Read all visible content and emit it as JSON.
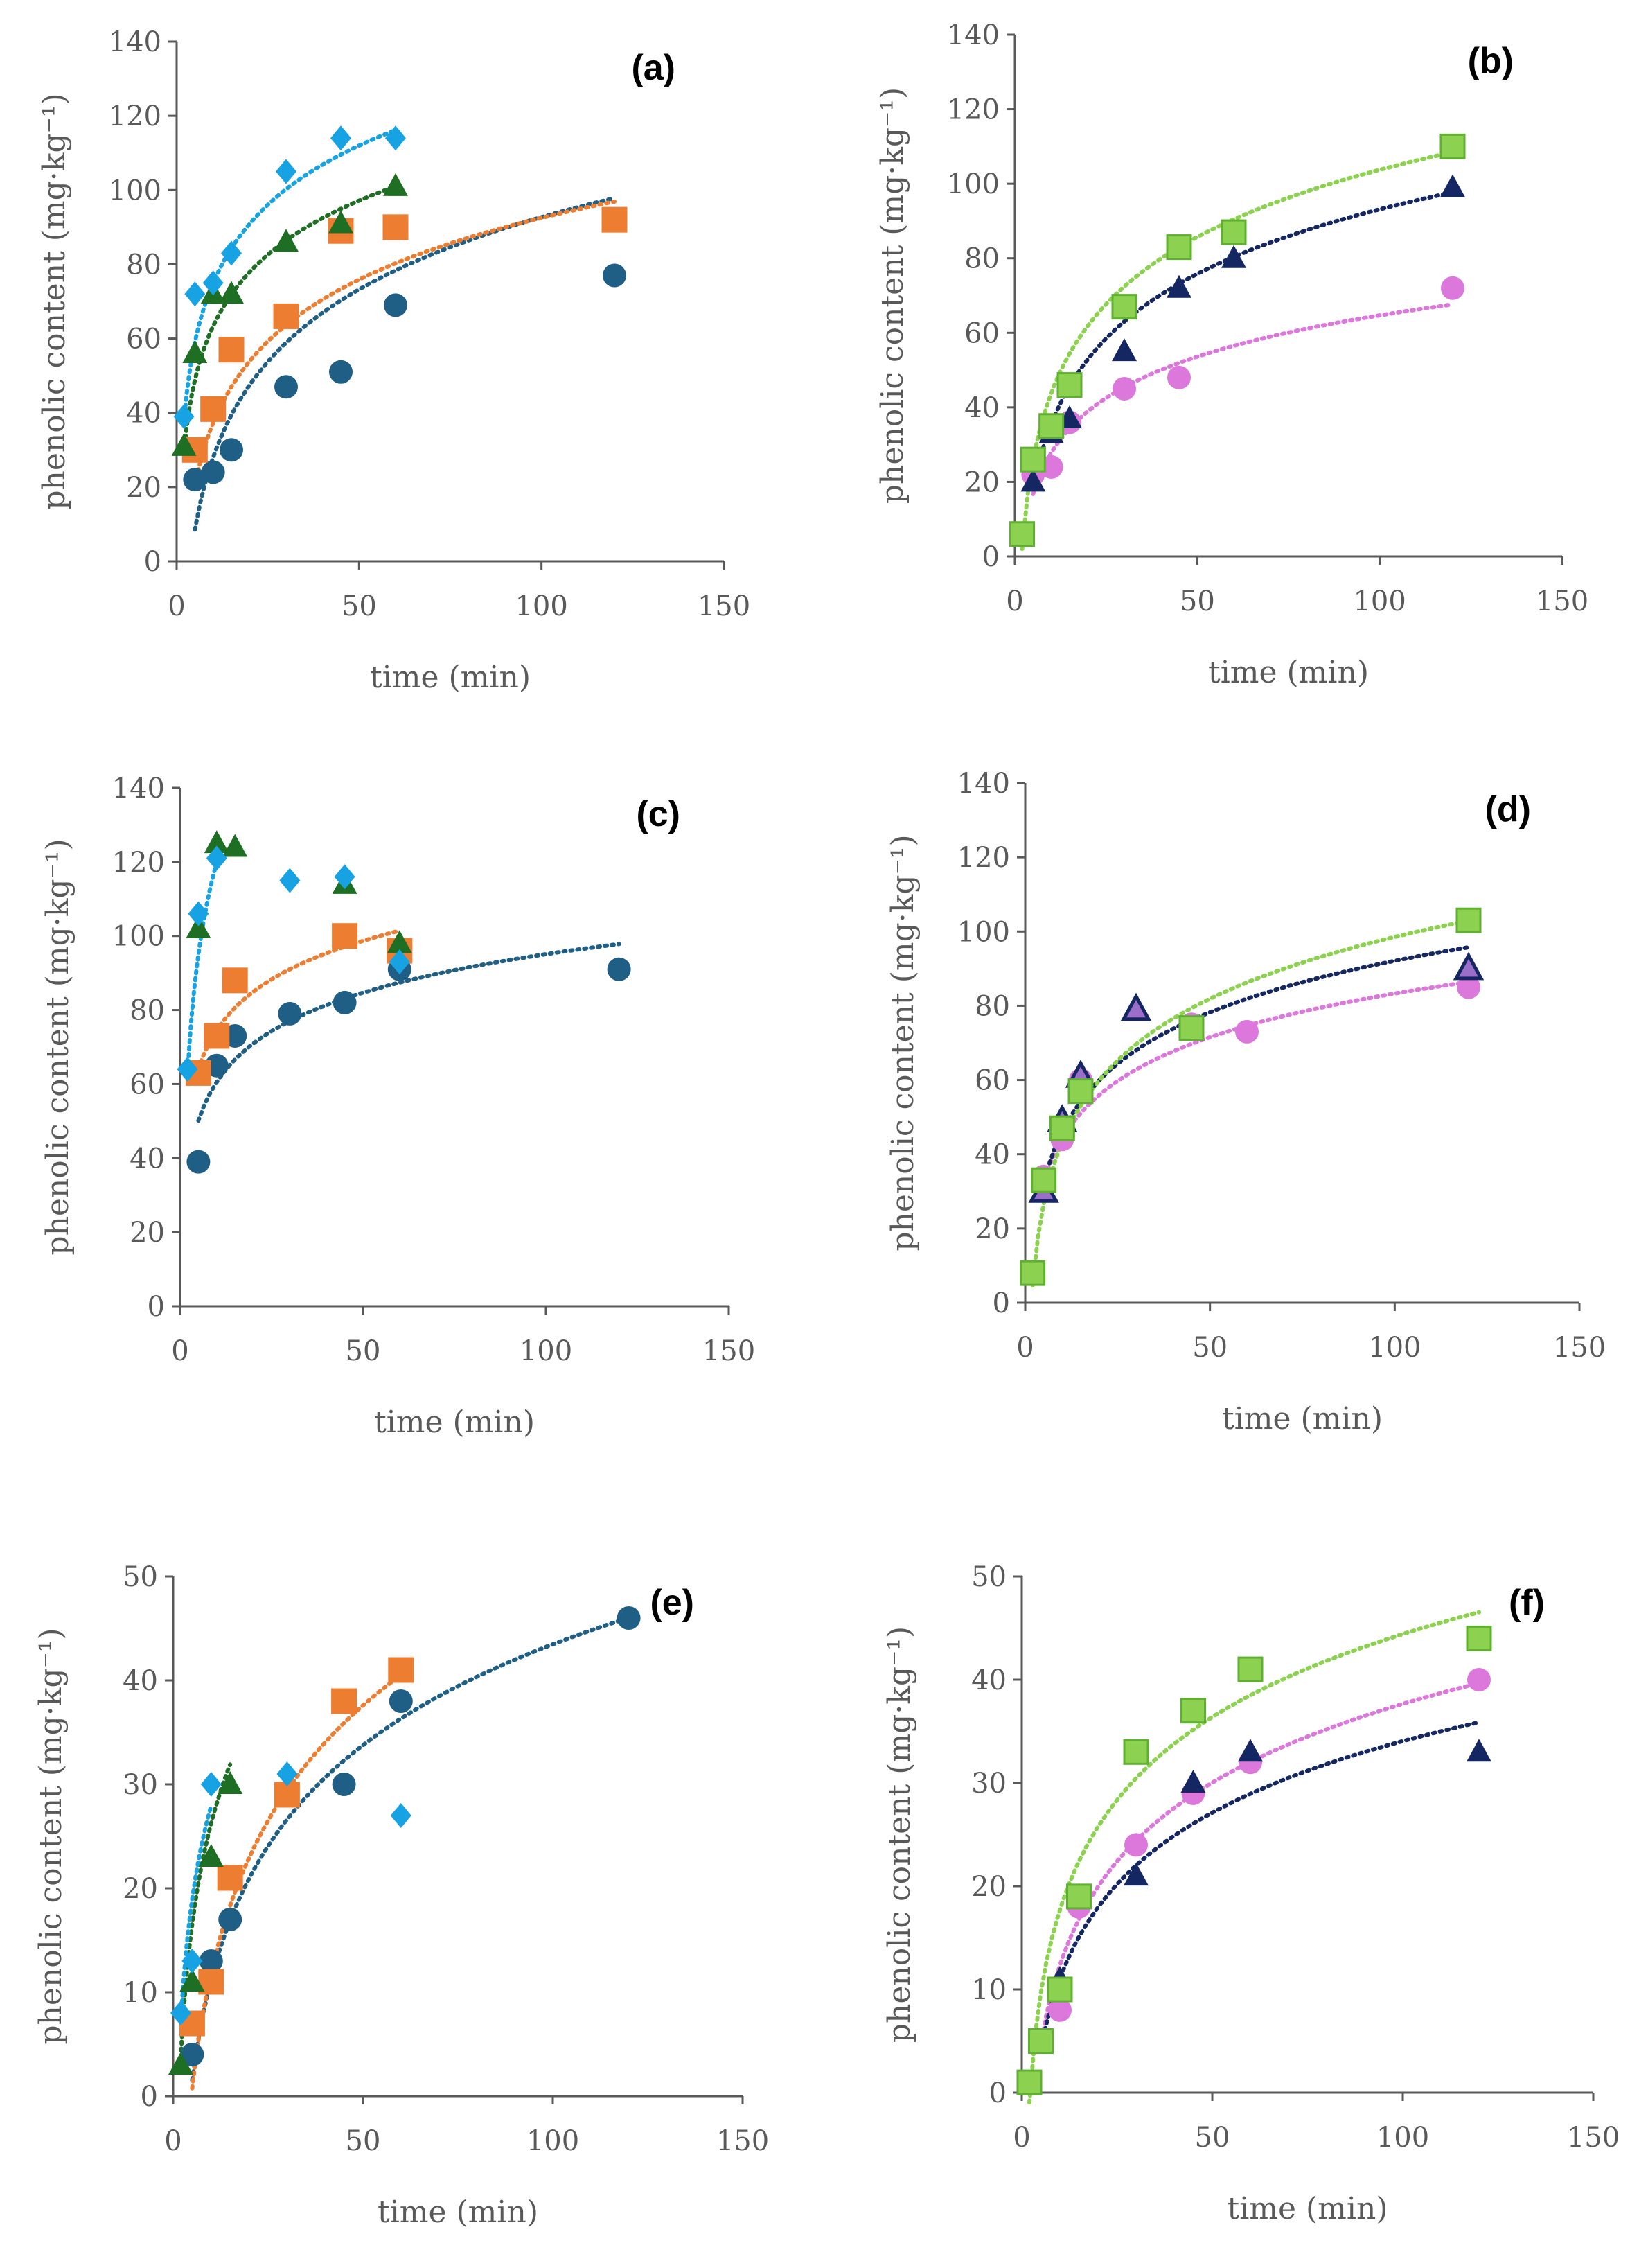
{
  "colors": {
    "s1": "#1F5F86",
    "s2": "#ED7D31",
    "s3": "#1E6E24",
    "s4": "#17A3E3",
    "pink": "#DC78DC",
    "navy": "#152763",
    "lime": "#8CD250",
    "axis": "#595959"
  },
  "chart_data": [
    {
      "label": "(a)",
      "type": "scatter",
      "xlabel": "time (min)",
      "ylabel": "phenolic content (mg·kg⁻¹)",
      "xlim": [
        0,
        150
      ],
      "ylim": [
        0,
        140
      ],
      "xticks": [
        0,
        50,
        100,
        150
      ],
      "yticks": [
        0,
        20,
        40,
        60,
        80,
        100,
        120,
        140
      ],
      "series": [
        {
          "name": "series-1",
          "marker": "circle",
          "color": "#1F5F86",
          "x": [
            5,
            10,
            15,
            30,
            45,
            60,
            120
          ],
          "y": [
            22,
            24,
            30,
            47,
            51,
            69,
            77
          ],
          "fit": {
            "a": 28.1,
            "b": -36.7,
            "from": 5,
            "to": 120
          }
        },
        {
          "name": "series-2",
          "marker": "square",
          "color": "#ED7D31",
          "x": [
            5,
            10,
            15,
            30,
            45,
            60,
            120
          ],
          "y": [
            30,
            41,
            57,
            66,
            89,
            90,
            92
          ],
          "fit": {
            "a": 24.0,
            "b": -18.0,
            "from": 5,
            "to": 120
          }
        },
        {
          "name": "series-3",
          "marker": "triangle",
          "color": "#1E6E24",
          "x": [
            2,
            5,
            10,
            15,
            30,
            45,
            60
          ],
          "y": [
            31,
            56,
            72,
            72,
            86,
            91,
            101
          ],
          "fit": {
            "a": 21.0,
            "b": 15.0,
            "from": 2,
            "to": 60
          }
        },
        {
          "name": "series-4",
          "marker": "diamond",
          "color": "#17A3E3",
          "x": [
            2,
            5,
            10,
            15,
            30,
            45,
            60
          ],
          "y": [
            39,
            72,
            75,
            83,
            105,
            114,
            114
          ],
          "fit": {
            "a": 23.0,
            "b": 22.0,
            "from": 2,
            "to": 60
          }
        }
      ]
    },
    {
      "label": "(b)",
      "type": "scatter",
      "xlabel": "time (min)",
      "ylabel": "phenolic content (mg·kg⁻¹)",
      "xlim": [
        0,
        150
      ],
      "ylim": [
        0,
        140
      ],
      "xticks": [
        0,
        50,
        100,
        150
      ],
      "yticks": [
        0,
        20,
        40,
        60,
        80,
        100,
        120,
        140
      ],
      "series": [
        {
          "name": "series-1",
          "marker": "circle",
          "color": "#DC78DC",
          "x": [
            5,
            10,
            15,
            30,
            45,
            120
          ],
          "y": [
            22,
            24,
            36,
            45,
            48,
            72
          ],
          "fit": {
            "a": 16.0,
            "b": -9.0,
            "from": 5,
            "to": 120
          }
        },
        {
          "name": "series-2",
          "marker": "triangle",
          "color": "#152763",
          "x": [
            5,
            10,
            15,
            30,
            45,
            60,
            120
          ],
          "y": [
            20,
            33,
            37,
            55,
            72,
            80,
            99
          ],
          "fit": {
            "a": 25.0,
            "b": -22.0,
            "from": 5,
            "to": 120
          }
        },
        {
          "name": "series-3",
          "marker": "square",
          "color": "#8CD250",
          "x": [
            2,
            5,
            10,
            15,
            30,
            45,
            60,
            120
          ],
          "y": [
            6,
            26,
            35,
            46,
            67,
            83,
            87,
            110
          ],
          "fit": {
            "a": 26.0,
            "b": -16.0,
            "from": 2,
            "to": 120
          }
        }
      ]
    },
    {
      "label": "(c)",
      "type": "scatter",
      "xlabel": "time (min)",
      "ylabel": "phenolic content (mg·kg⁻¹)",
      "xlim": [
        0,
        150
      ],
      "ylim": [
        0,
        140
      ],
      "xticks": [
        0,
        50,
        100,
        150
      ],
      "yticks": [
        0,
        20,
        40,
        60,
        80,
        100,
        120,
        140
      ],
      "series": [
        {
          "name": "series-1",
          "marker": "circle",
          "color": "#1F5F86",
          "x": [
            5,
            10,
            15,
            30,
            45,
            60,
            120
          ],
          "y": [
            39,
            65,
            73,
            79,
            82,
            91,
            91
          ],
          "fit": {
            "a": 15.0,
            "b": 26.0,
            "from": 5,
            "to": 120
          }
        },
        {
          "name": "series-2",
          "marker": "square",
          "color": "#ED7D31",
          "x": [
            5,
            10,
            15,
            45,
            60
          ],
          "y": [
            63,
            73,
            88,
            100,
            96
          ],
          "fit": {
            "a": 15.0,
            "b": 40.0,
            "from": 5,
            "to": 60
          }
        },
        {
          "name": "series-3",
          "marker": "triangle",
          "color": "#1E6E24",
          "x": [
            5,
            10,
            15,
            45,
            60
          ],
          "y": [
            102,
            125,
            124,
            114,
            98
          ],
          "fit": null
        },
        {
          "name": "series-4",
          "marker": "diamond",
          "color": "#17A3E3",
          "x": [
            2,
            5,
            10,
            30,
            45,
            60
          ],
          "y": [
            64,
            106,
            121,
            115,
            116,
            93
          ],
          "fit": {
            "a": 36.0,
            "b": 37.0,
            "from": 2,
            "to": 10
          }
        }
      ]
    },
    {
      "label": "(d)",
      "type": "scatter",
      "xlabel": "time (min)",
      "ylabel": "phenolic content (mg·kg⁻¹)",
      "xlim": [
        0,
        150
      ],
      "ylim": [
        0,
        140
      ],
      "xticks": [
        0,
        50,
        100,
        150
      ],
      "yticks": [
        0,
        20,
        40,
        60,
        80,
        100,
        120,
        140
      ],
      "series": [
        {
          "name": "series-1",
          "marker": "circle",
          "color": "#DC78DC",
          "x": [
            5,
            10,
            15,
            45,
            60,
            120
          ],
          "y": [
            34,
            44,
            60,
            75,
            73,
            85
          ],
          "fit": {
            "a": 17.0,
            "b": 5.0,
            "from": 5,
            "to": 120
          }
        },
        {
          "name": "series-2",
          "marker": "triangle-hollow",
          "color": "#152763",
          "x": [
            5,
            10,
            15,
            30,
            120
          ],
          "y": [
            30,
            49,
            61,
            79,
            90
          ],
          "fit": {
            "a": 20.0,
            "b": 0.0,
            "from": 5,
            "to": 120
          }
        },
        {
          "name": "series-3",
          "marker": "square",
          "color": "#8CD250",
          "x": [
            2,
            5,
            10,
            15,
            45,
            120
          ],
          "y": [
            8,
            33,
            47,
            57,
            74,
            103
          ],
          "fit": {
            "a": 24.0,
            "b": -12.0,
            "from": 2,
            "to": 120
          }
        }
      ]
    },
    {
      "label": "(e)",
      "type": "scatter",
      "xlabel": "time (min)",
      "ylabel": "phenolic content (mg·kg⁻¹)",
      "xlim": [
        0,
        150
      ],
      "ylim": [
        0,
        50
      ],
      "xticks": [
        0,
        50,
        100,
        150
      ],
      "yticks": [
        0,
        10,
        20,
        30,
        40,
        50
      ],
      "series": [
        {
          "name": "series-1",
          "marker": "circle",
          "color": "#1F5F86",
          "x": [
            5,
            10,
            15,
            45,
            60,
            120
          ],
          "y": [
            4,
            13,
            17,
            30,
            38,
            46
          ],
          "fit": {
            "a": 14.0,
            "b": -21.0,
            "from": 5,
            "to": 120
          }
        },
        {
          "name": "series-2",
          "marker": "square",
          "color": "#ED7D31",
          "x": [
            5,
            10,
            15,
            30,
            45,
            60
          ],
          "y": [
            7,
            11,
            21,
            29,
            38,
            41
          ],
          "fit": {
            "a": 16.0,
            "b": -25.0,
            "from": 5,
            "to": 60
          }
        },
        {
          "name": "series-3",
          "marker": "triangle",
          "color": "#1E6E24",
          "x": [
            2,
            5,
            10,
            15
          ],
          "y": [
            3,
            11,
            23,
            30
          ],
          "fit": {
            "a": 14.0,
            "b": -6.0,
            "from": 2,
            "to": 15
          }
        },
        {
          "name": "series-4",
          "marker": "diamond",
          "color": "#17A3E3",
          "x": [
            2,
            5,
            10,
            30,
            60
          ],
          "y": [
            8,
            13,
            30,
            31,
            27
          ],
          "fit": {
            "a": 13.0,
            "b": -2.0,
            "from": 2,
            "to": 10
          }
        }
      ]
    },
    {
      "label": "(f)",
      "type": "scatter",
      "xlabel": "time (min)",
      "ylabel": "phenolic content (mg·kg⁻¹)",
      "xlim": [
        0,
        150
      ],
      "ylim": [
        0,
        50
      ],
      "xticks": [
        0,
        50,
        100,
        150
      ],
      "yticks": [
        0,
        10,
        20,
        30,
        40,
        50
      ],
      "series": [
        {
          "name": "series-1",
          "marker": "circle",
          "color": "#DC78DC",
          "x": [
            5,
            10,
            15,
            30,
            45,
            60,
            120
          ],
          "y": [
            5,
            8,
            18,
            24,
            29,
            32,
            40
          ],
          "fit": {
            "a": 11.0,
            "b": -13.0,
            "from": 5,
            "to": 120
          }
        },
        {
          "name": "series-2",
          "marker": "triangle",
          "color": "#152763",
          "x": [
            5,
            10,
            15,
            30,
            45,
            60,
            120
          ],
          "y": [
            5,
            11,
            19,
            21,
            30,
            33,
            33
          ],
          "fit": {
            "a": 10.0,
            "b": -12.0,
            "from": 5,
            "to": 120
          }
        },
        {
          "name": "series-3",
          "marker": "square",
          "color": "#8CD250",
          "x": [
            2,
            5,
            10,
            15,
            30,
            45,
            60,
            120
          ],
          "y": [
            1,
            5,
            10,
            19,
            33,
            37,
            41,
            44
          ],
          "fit": {
            "a": 11.6,
            "b": -9.0,
            "from": 2,
            "to": 120
          }
        }
      ]
    }
  ]
}
